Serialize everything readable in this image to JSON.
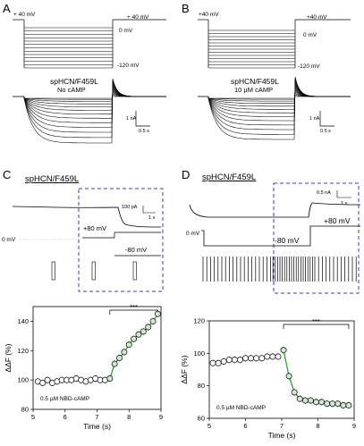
{
  "panel_a": {
    "letter": "A",
    "hold_label": "+ 40 mV",
    "step_top_label": "0 mV",
    "step_bottom_label": "-120 mV",
    "tail_label": "+ 40 mV",
    "construct": "spHCN/F459L",
    "condition": "No cAMP",
    "scale_current": "1 nA",
    "scale_time": "0.5 s"
  },
  "panel_b": {
    "letter": "B",
    "hold_label": "+40 mV",
    "step_top_label": "0 mV",
    "step_bottom_label": "-120 mV",
    "tail_label": "+40 mV",
    "construct": "spHCN/F459L",
    "condition": "10 µM cAMP",
    "scale_current": "1 nA",
    "scale_time": "0.5 s"
  },
  "panel_c": {
    "letter": "C",
    "construct": "spHCN/F459L",
    "scale_current": "100 pA",
    "scale_time": "1 s",
    "v_high": "+80 mV",
    "v_low": "-80 mV",
    "v_hold": "0 mV"
  },
  "panel_d": {
    "letter": "D",
    "construct": "spHCN/F459L",
    "scale_current": "0.5 nA",
    "scale_time": "1 s",
    "v_high": "+80 mV",
    "v_low": "-80 mV",
    "v_hold": "0 mV"
  },
  "chart_data": [
    {
      "type": "scatter",
      "id": "C-bottom",
      "annotation": "0.5 µM NBD-cAMP",
      "significance": "***",
      "xlabel": "Time (s)",
      "ylabel": "ΔΔF (%)",
      "xlim": [
        5,
        9
      ],
      "ylim": [
        80,
        150
      ],
      "xticks": [
        5,
        6,
        7,
        8,
        9
      ],
      "yticks": [
        80,
        100,
        120,
        140
      ],
      "x": [
        5.15,
        5.3,
        5.45,
        5.6,
        5.75,
        5.9,
        6.05,
        6.2,
        6.35,
        6.5,
        6.65,
        6.8,
        6.95,
        7.1,
        7.25,
        7.4,
        7.55,
        7.7,
        7.85,
        8.0,
        8.15,
        8.3,
        8.45,
        8.6,
        8.75,
        8.9
      ],
      "y": [
        99,
        98,
        100,
        98,
        99,
        100,
        100,
        100,
        101,
        100,
        99,
        100,
        101,
        100,
        100,
        101,
        111,
        115,
        119,
        124,
        128,
        131,
        133,
        136,
        140,
        145
      ],
      "highlight_start_index": 15
    },
    {
      "type": "scatter",
      "id": "D-bottom",
      "annotation": "0.5 µM NBD-cAMP",
      "significance": "***",
      "xlabel": "Time (s)",
      "ylabel": "ΔΔF (%)",
      "xlim": [
        5,
        9
      ],
      "ylim": [
        60,
        120
      ],
      "xticks": [
        5,
        6,
        7,
        8,
        9
      ],
      "yticks": [
        60,
        80,
        100,
        120
      ],
      "x": [
        5.1,
        5.25,
        5.4,
        5.55,
        5.7,
        5.85,
        6.0,
        6.15,
        6.3,
        6.45,
        6.6,
        6.75,
        6.9,
        7.05,
        7.2,
        7.35,
        7.5,
        7.65,
        7.8,
        7.95,
        8.1,
        8.25,
        8.4,
        8.55,
        8.7,
        8.85
      ],
      "y": [
        94,
        94,
        95,
        96,
        96,
        96,
        97,
        97,
        97,
        97,
        98,
        98,
        98,
        102,
        86,
        76,
        72,
        71,
        71,
        70,
        70,
        69,
        69,
        69,
        68,
        68
      ],
      "highlight_start_index": 13
    }
  ]
}
